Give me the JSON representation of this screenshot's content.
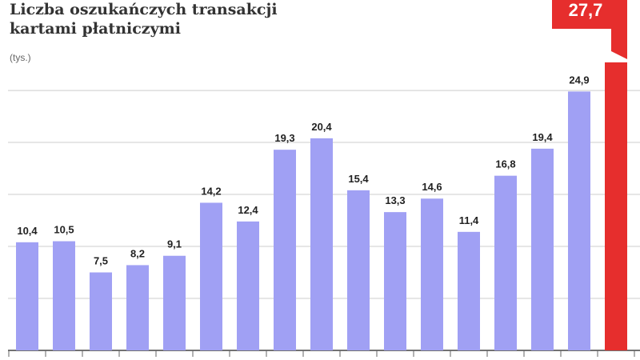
{
  "chart_data": {
    "type": "bar",
    "title": "Liczba oszukańczych transakcji kartami płatniczymi",
    "subtitle": "(tys.)",
    "values": [
      10.4,
      10.5,
      7.5,
      8.2,
      9.1,
      14.2,
      12.4,
      19.3,
      20.4,
      15.4,
      13.3,
      14.6,
      11.4,
      16.8,
      19.4,
      24.9,
      27.7
    ],
    "value_labels": [
      "10,4",
      "10,5",
      "7,5",
      "8,2",
      "9,1",
      "14,2",
      "12,4",
      "19,3",
      "20,4",
      "15,4",
      "13,3",
      "14,6",
      "11,4",
      "16,8",
      "19,4",
      "24,9",
      "27,7"
    ],
    "colors": [
      "#a0a0f4",
      "#a0a0f4",
      "#a0a0f4",
      "#a0a0f4",
      "#a0a0f4",
      "#a0a0f4",
      "#a0a0f4",
      "#a0a0f4",
      "#a0a0f4",
      "#a0a0f4",
      "#a0a0f4",
      "#a0a0f4",
      "#a0a0f4",
      "#a0a0f4",
      "#a0a0f4",
      "#a0a0f4",
      "#e62e2d"
    ],
    "ylim": [
      0,
      33.7
    ],
    "yticks": [
      0,
      5,
      10,
      15,
      20,
      25
    ],
    "grid": true
  }
}
